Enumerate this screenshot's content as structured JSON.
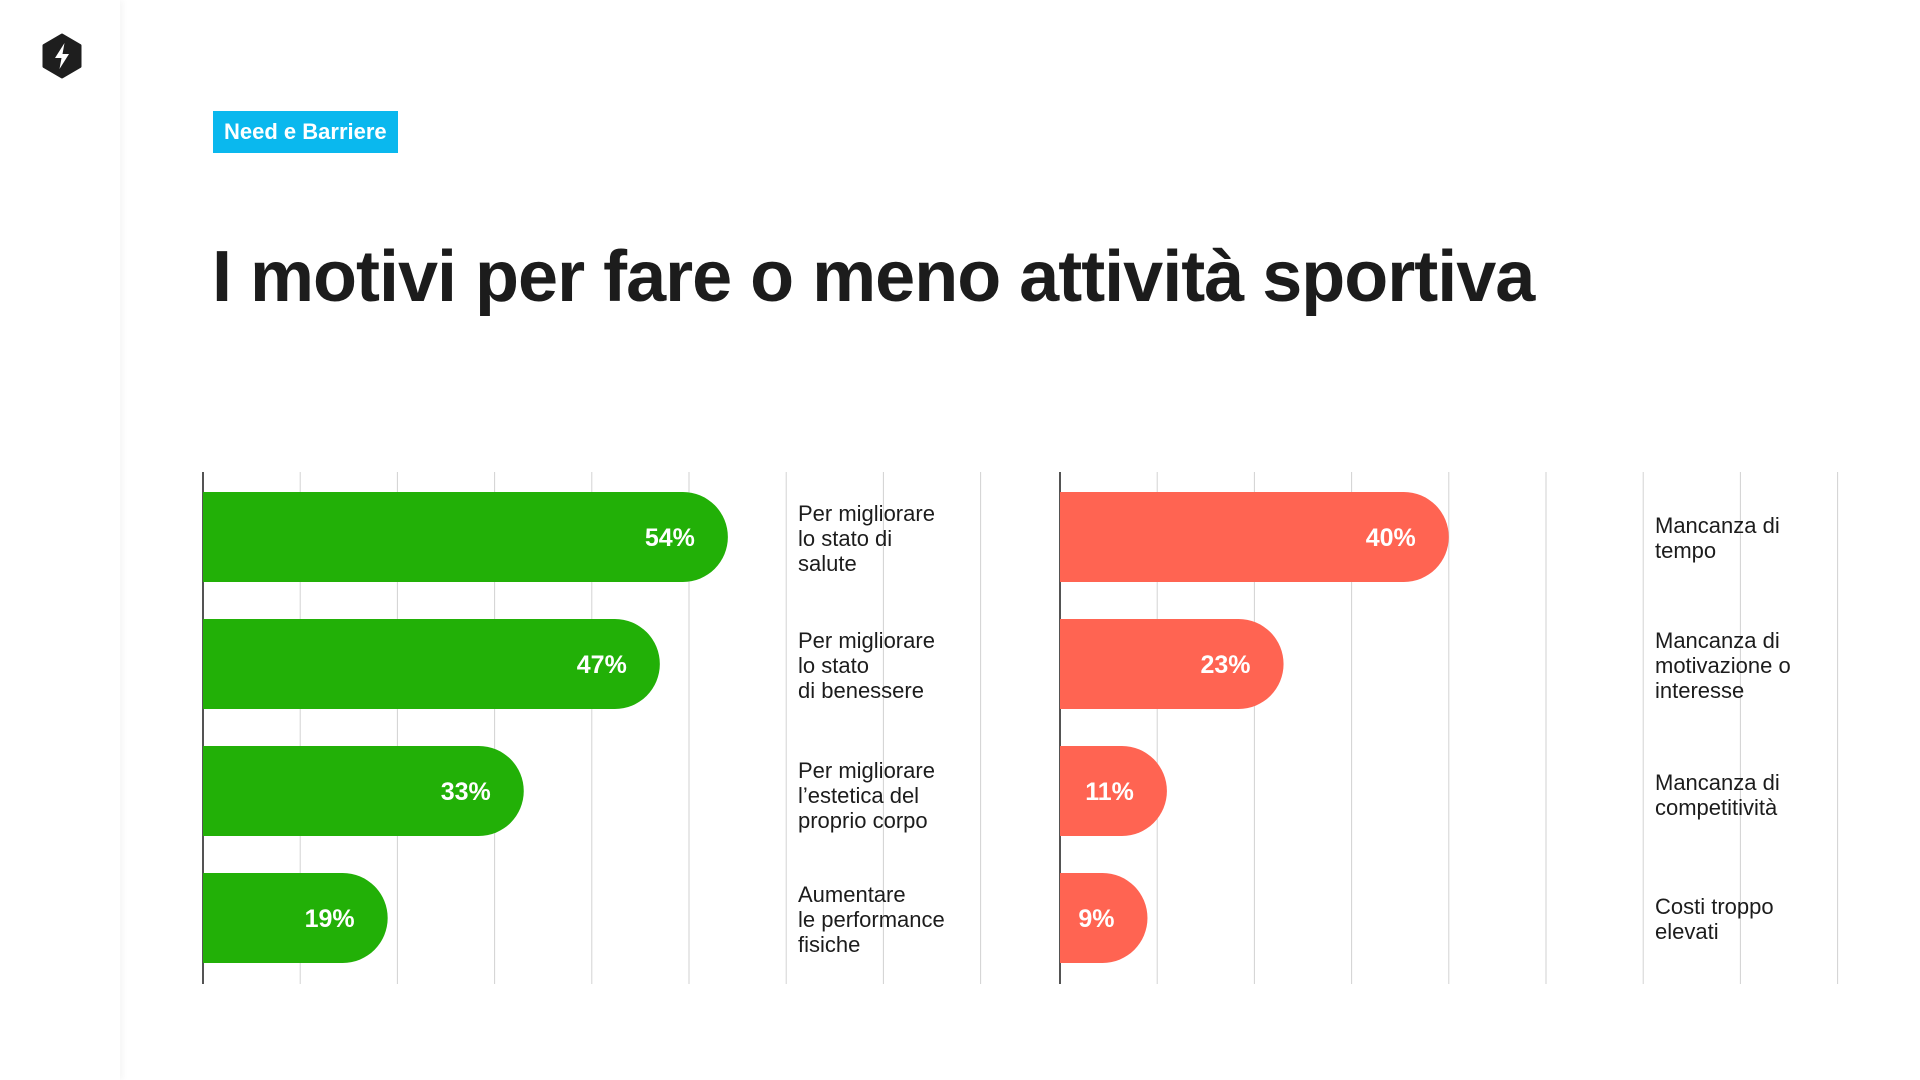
{
  "tag": {
    "label": "Need e Barriere",
    "color": "#0ab8ee"
  },
  "title": "I motivi per fare o meno attività sportiva",
  "icons": {
    "logo": "lightning-hexagon-icon"
  },
  "chart_data": [
    {
      "type": "bar",
      "orientation": "horizontal",
      "color": "#22b007",
      "categories": [
        "Per migliorare\nlo stato di\nsalute",
        "Per migliorare\nlo stato\ndi benessere",
        "Per migliorare\nl’estetica del\nproprio corpo",
        "Aumentare\nle performance\nfisiche"
      ],
      "values": [
        54,
        47,
        33,
        19
      ],
      "value_labels": [
        "54%",
        "47%",
        "33%",
        "19%"
      ],
      "xlim": [
        0,
        100
      ],
      "grid": true
    },
    {
      "type": "bar",
      "orientation": "horizontal",
      "color": "#ff6452",
      "categories": [
        "Mancanza di\ntempo",
        "Mancanza di\nmotivazione o\ninteresse",
        "Mancanza di\ncompetitività",
        "Costi troppo\nelevati"
      ],
      "values": [
        40,
        23,
        11,
        9
      ],
      "value_labels": [
        "40%",
        "23%",
        "11%",
        "9%"
      ],
      "xlim": [
        0,
        100
      ],
      "grid": true
    }
  ]
}
